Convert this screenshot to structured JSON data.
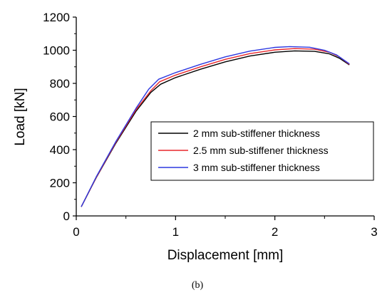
{
  "chart_data": {
    "type": "line",
    "xlabel": "Displacement [mm]",
    "ylabel": "Load [kN]",
    "xlim": [
      0,
      3
    ],
    "ylim": [
      0,
      1200
    ],
    "x_ticks": [
      "0",
      "1",
      "2",
      "3"
    ],
    "y_ticks": [
      "0",
      "200",
      "400",
      "600",
      "800",
      "1000",
      "1200"
    ],
    "x_tick_values": [
      0,
      1,
      2,
      3
    ],
    "y_tick_values": [
      0,
      200,
      400,
      600,
      800,
      1000,
      1200
    ],
    "grid": false,
    "legend_position": "right",
    "caption": "(b)",
    "series": [
      {
        "name": "2 mm sub-stiffener thickness",
        "color": "#000000",
        "x": [
          0.05,
          0.2,
          0.4,
          0.6,
          0.75,
          0.85,
          1.0,
          1.25,
          1.5,
          1.75,
          2.0,
          2.2,
          2.4,
          2.55,
          2.65,
          2.75
        ],
        "y": [
          55,
          230,
          440,
          630,
          745,
          795,
          835,
          885,
          930,
          965,
          988,
          996,
          993,
          978,
          952,
          912
        ]
      },
      {
        "name": "2.5 mm sub-stiffener thickness",
        "color": "#e8262b",
        "x": [
          0.05,
          0.2,
          0.4,
          0.6,
          0.75,
          0.84,
          1.0,
          1.25,
          1.5,
          1.75,
          2.0,
          2.2,
          2.4,
          2.55,
          2.65,
          2.75
        ],
        "y": [
          55,
          232,
          445,
          640,
          755,
          810,
          850,
          900,
          945,
          980,
          1002,
          1010,
          1006,
          988,
          960,
          915
        ]
      },
      {
        "name": "3 mm sub-stiffener thickness",
        "color": "#2d38e0",
        "x": [
          0.05,
          0.2,
          0.4,
          0.6,
          0.73,
          0.83,
          1.0,
          1.25,
          1.5,
          1.75,
          2.0,
          2.15,
          2.35,
          2.5,
          2.62,
          2.75
        ],
        "y": [
          55,
          235,
          450,
          648,
          765,
          825,
          865,
          915,
          960,
          995,
          1017,
          1022,
          1018,
          1000,
          972,
          918
        ]
      }
    ]
  }
}
